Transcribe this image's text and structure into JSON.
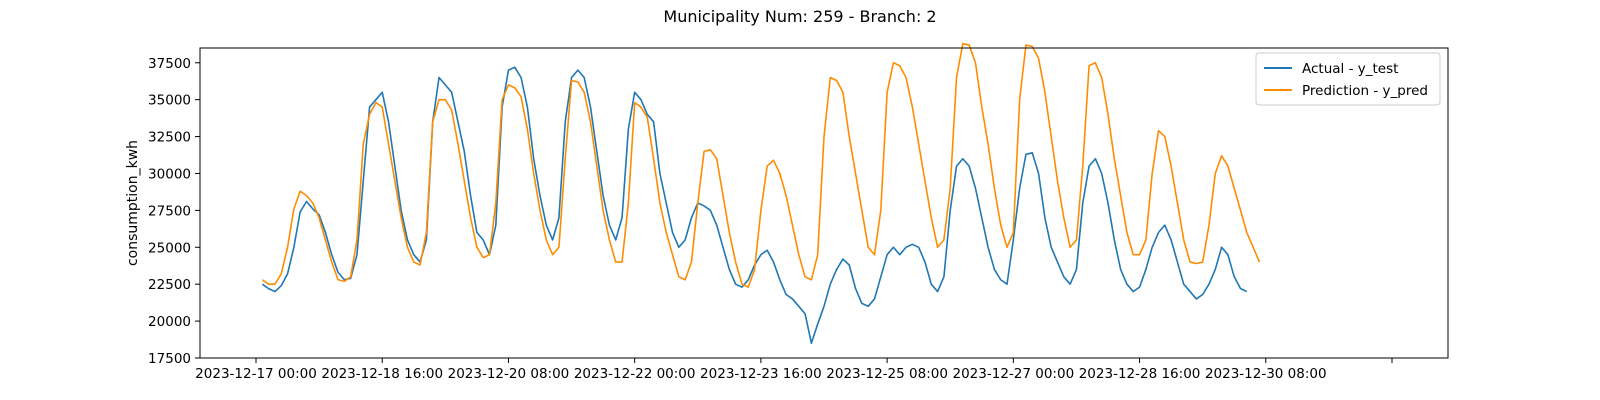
{
  "chart_data": {
    "type": "line",
    "title": "Municipality Num: 259 - Branch: 2",
    "xlabel": "",
    "ylabel": "consumption_kwh",
    "xlim": [
      "2023-12-17 00:00",
      "2024-01-01 00:00"
    ],
    "ylim": [
      17500,
      38500
    ],
    "x_ticks": [
      "2023-12-17 00:00",
      "2023-12-18 16:00",
      "2023-12-20 08:00",
      "2023-12-22 00:00",
      "2023-12-23 16:00",
      "2023-12-25 08:00",
      "2023-12-27 00:00",
      "2023-12-28 16:00",
      "2023-12-30 08:00",
      ""
    ],
    "y_ticks": [
      17500,
      20000,
      22500,
      25000,
      27500,
      30000,
      32500,
      35000,
      37500
    ],
    "y_tick_labels": [
      "17500",
      "20000",
      "22500",
      "25000",
      "27500",
      "30000",
      "32500",
      "35000",
      "37500"
    ],
    "grid": false,
    "legend_position": "top-right",
    "x_step_hours": 2,
    "x_start": "2023-12-17 02:00",
    "series": [
      {
        "name": "Actual - y_test",
        "color": "#1f77b4",
        "values": [
          22500,
          22200,
          22000,
          22400,
          23200,
          25000,
          27400,
          28100,
          27600,
          27200,
          26000,
          24500,
          23300,
          22800,
          22900,
          24500,
          29500,
          34500,
          35000,
          35500,
          33500,
          30500,
          27500,
          25500,
          24500,
          24000,
          25500,
          33500,
          36500,
          36000,
          35500,
          33500,
          31500,
          28500,
          26000,
          25500,
          24500,
          26500,
          34500,
          37000,
          37200,
          36500,
          34500,
          31000,
          28500,
          26500,
          25500,
          27000,
          33500,
          36500,
          37000,
          36500,
          34500,
          31500,
          28500,
          26500,
          25500,
          27000,
          33000,
          35500,
          35000,
          34000,
          33500,
          30000,
          28000,
          26000,
          25000,
          25500,
          27000,
          28000,
          27800,
          27500,
          26500,
          25000,
          23500,
          22500,
          22300,
          22800,
          23800,
          24500,
          24800,
          24000,
          22800,
          21800,
          21500,
          21000,
          20500,
          18500,
          19800,
          21000,
          22500,
          23500,
          24200,
          23800,
          22200,
          21200,
          21000,
          21500,
          23000,
          24500,
          25000,
          24500,
          25000,
          25200,
          25000,
          24000,
          22500,
          22000,
          23000,
          27500,
          30500,
          31000,
          30500,
          29000,
          27000,
          25000,
          23500,
          22800,
          22500,
          25500,
          29000,
          31300,
          31400,
          30000,
          27000,
          25000,
          24000,
          23000,
          22500,
          23500,
          28000,
          30500,
          31000,
          30000,
          28000,
          25500,
          23500,
          22500,
          22000,
          22300,
          23500,
          25000,
          26000,
          26500,
          25500,
          24000,
          22500,
          22000,
          21500,
          21800,
          22500,
          23500,
          25000,
          24500,
          23000,
          22200,
          22000
        ]
      },
      {
        "name": "Prediction - y_pred",
        "color": "#ff8c00",
        "values": [
          22800,
          22500,
          22500,
          23200,
          25000,
          27600,
          28800,
          28500,
          28000,
          27000,
          25500,
          24000,
          22800,
          22700,
          23000,
          25500,
          32000,
          34000,
          34800,
          34500,
          32000,
          29500,
          27000,
          25000,
          24000,
          23800,
          26000,
          33500,
          35000,
          35000,
          34300,
          32000,
          29500,
          27000,
          25000,
          24300,
          24500,
          28000,
          35000,
          36000,
          35800,
          35200,
          33000,
          30000,
          27500,
          25500,
          24500,
          25000,
          31000,
          36300,
          36200,
          35500,
          33500,
          30500,
          27500,
          25500,
          24000,
          24000,
          28000,
          34800,
          34500,
          33800,
          31000,
          28000,
          26000,
          24500,
          23000,
          22800,
          24000,
          28000,
          31500,
          31600,
          31000,
          28500,
          26000,
          24000,
          22500,
          22300,
          23500,
          27500,
          30500,
          30900,
          30000,
          28500,
          26500,
          24500,
          23000,
          22800,
          24500,
          32500,
          36500,
          36300,
          35500,
          32500,
          30000,
          27500,
          25000,
          24500,
          27500,
          35500,
          37500,
          37300,
          36500,
          34500,
          32000,
          29500,
          27000,
          25000,
          25500,
          29000,
          36500,
          38800,
          38700,
          37500,
          34500,
          32000,
          29000,
          26500,
          25000,
          26000,
          35000,
          38700,
          38600,
          37800,
          35500,
          32500,
          29500,
          27000,
          25000,
          25500,
          30500,
          37300,
          37500,
          36500,
          34000,
          31000,
          28500,
          26000,
          24500,
          24500,
          25500,
          30000,
          32900,
          32500,
          30500,
          28000,
          25500,
          24000,
          23900,
          24000,
          26500,
          30000,
          31200,
          30500,
          29000,
          27500,
          26000,
          25000,
          24000
        ]
      }
    ]
  }
}
